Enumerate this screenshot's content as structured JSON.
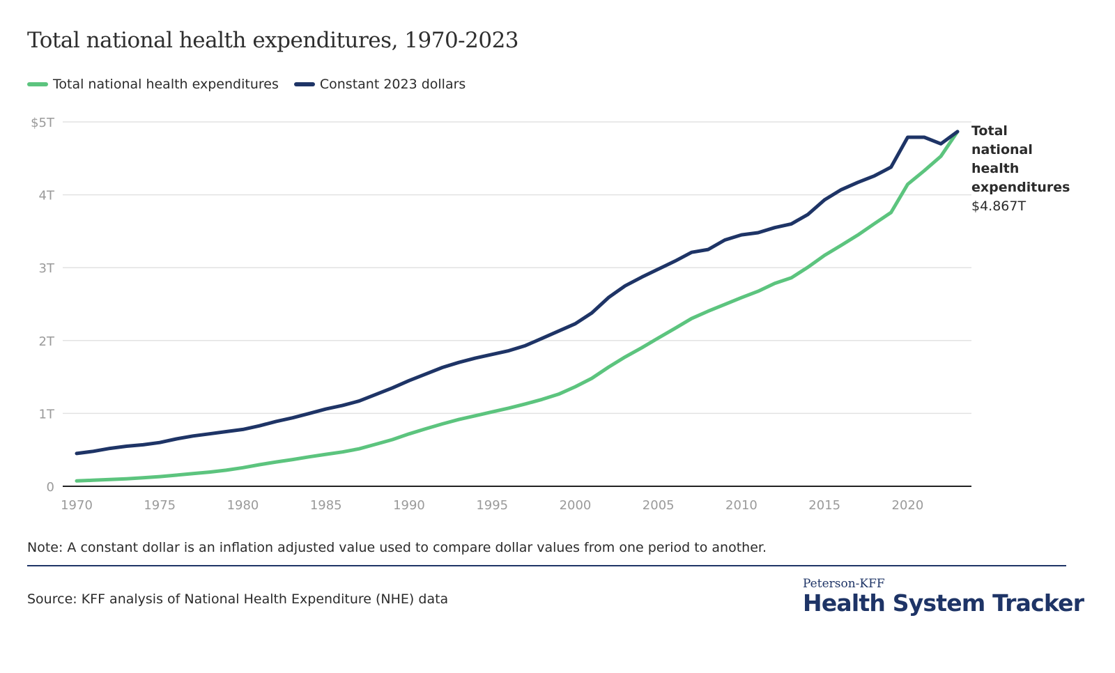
{
  "title": "Total national health expenditures, 1970-2023",
  "legend": [
    {
      "label": "Total national health expenditures",
      "color": "#5cc47e"
    },
    {
      "label": "Constant 2023 dollars",
      "color": "#1e3466"
    }
  ],
  "end_label": {
    "title": "Total national health expenditures",
    "value": "$4.867T"
  },
  "note": "Note: A constant dollar is an inflation adjusted value used to compare dollar values from one period to another.",
  "source": "Source: KFF analysis of National Health Expenditure (NHE) data",
  "logo": {
    "top": "Peterson-KFF",
    "main": "Health System Tracker"
  },
  "chart_data": {
    "type": "line",
    "title": "Total national health expenditures, 1970-2023",
    "xlabel": "",
    "ylabel": "",
    "x": [
      1970,
      1971,
      1972,
      1973,
      1974,
      1975,
      1976,
      1977,
      1978,
      1979,
      1980,
      1981,
      1982,
      1983,
      1984,
      1985,
      1986,
      1987,
      1988,
      1989,
      1990,
      1991,
      1992,
      1993,
      1994,
      1995,
      1996,
      1997,
      1998,
      1999,
      2000,
      2001,
      2002,
      2003,
      2004,
      2005,
      2006,
      2007,
      2008,
      2009,
      2010,
      2011,
      2012,
      2013,
      2014,
      2015,
      2016,
      2017,
      2018,
      2019,
      2020,
      2021,
      2022,
      2023
    ],
    "xlim": [
      1970,
      2023
    ],
    "xticks": [
      1970,
      1975,
      1980,
      1985,
      1990,
      1995,
      2000,
      2005,
      2010,
      2015,
      2020
    ],
    "xtick_labels": [
      "1970",
      "1975",
      "1980",
      "1985",
      "1990",
      "1995",
      "2000",
      "2005",
      "2010",
      "2015",
      "2020"
    ],
    "ylim": [
      0,
      5
    ],
    "yticks": [
      0,
      1,
      2,
      3,
      4,
      5
    ],
    "ytick_labels": [
      "0",
      "1T",
      "2T",
      "3T",
      "4T",
      "$5T"
    ],
    "grid": true,
    "legend_position": "top-left",
    "series": [
      {
        "name": "Total national health expenditures",
        "color": "#5cc47e",
        "values": [
          0.074,
          0.083,
          0.093,
          0.103,
          0.117,
          0.133,
          0.153,
          0.174,
          0.195,
          0.221,
          0.255,
          0.296,
          0.334,
          0.367,
          0.404,
          0.439,
          0.471,
          0.514,
          0.577,
          0.641,
          0.719,
          0.789,
          0.856,
          0.917,
          0.968,
          1.021,
          1.073,
          1.13,
          1.192,
          1.264,
          1.366,
          1.482,
          1.635,
          1.774,
          1.901,
          2.035,
          2.167,
          2.302,
          2.403,
          2.496,
          2.589,
          2.676,
          2.785,
          2.86,
          3.007,
          3.169,
          3.307,
          3.447,
          3.604,
          3.757,
          4.144,
          4.331,
          4.53,
          4.867
        ]
      },
      {
        "name": "Constant 2023 dollars",
        "color": "#1e3466",
        "values": [
          0.45,
          0.48,
          0.52,
          0.55,
          0.57,
          0.6,
          0.65,
          0.69,
          0.72,
          0.75,
          0.78,
          0.83,
          0.89,
          0.94,
          1.0,
          1.06,
          1.11,
          1.17,
          1.26,
          1.35,
          1.45,
          1.54,
          1.63,
          1.7,
          1.76,
          1.81,
          1.86,
          1.93,
          2.03,
          2.13,
          2.23,
          2.38,
          2.59,
          2.75,
          2.87,
          2.98,
          3.09,
          3.21,
          3.25,
          3.38,
          3.45,
          3.48,
          3.55,
          3.6,
          3.73,
          3.93,
          4.07,
          4.17,
          4.26,
          4.38,
          4.79,
          4.79,
          4.7,
          4.867
        ]
      }
    ],
    "annotations": [
      {
        "text": "Total national health expenditures $4.867T",
        "x": 2023,
        "y": 4.867
      }
    ]
  }
}
